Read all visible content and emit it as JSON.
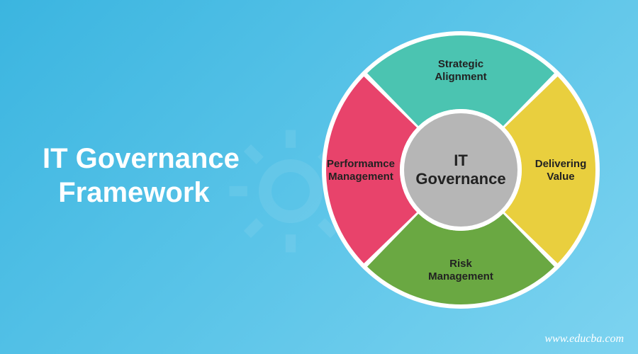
{
  "title": {
    "line1": "IT Governance",
    "line2": "  Framework",
    "fontsize": 40,
    "color": "#ffffff",
    "weight": "bold"
  },
  "background": {
    "gradient_start": "#3bb5e0",
    "gradient_end": "#7dd3f0"
  },
  "chart": {
    "type": "pie",
    "outer_radius": 190,
    "inner_radius": 80,
    "gap_deg": 2,
    "ring_bg": "#ffffff",
    "center_bg": "#b6b6b6",
    "center_label_line1": "IT",
    "center_label_line2": "Governance",
    "center_fontsize": 22,
    "label_fontsize": 15,
    "label_color": "#222222",
    "segments": [
      {
        "label_line1": "Strategic",
        "label_line2": "Alignment",
        "color": "#4bc4b1",
        "start_deg": -45,
        "end_deg": 45
      },
      {
        "label_line1": "Delivering",
        "label_line2": "Value",
        "color": "#e9cf3e",
        "start_deg": 45,
        "end_deg": 135
      },
      {
        "label_line1": "Risk",
        "label_line2": "Management",
        "color": "#6aa842",
        "start_deg": 135,
        "end_deg": 225
      },
      {
        "label_line1": "Performamce",
        "label_line2": "Management",
        "color": "#e8436b",
        "start_deg": 225,
        "end_deg": 315
      }
    ]
  },
  "footer": {
    "url": "www.educba.com",
    "fontsize": 16,
    "color": "#ffffff"
  }
}
